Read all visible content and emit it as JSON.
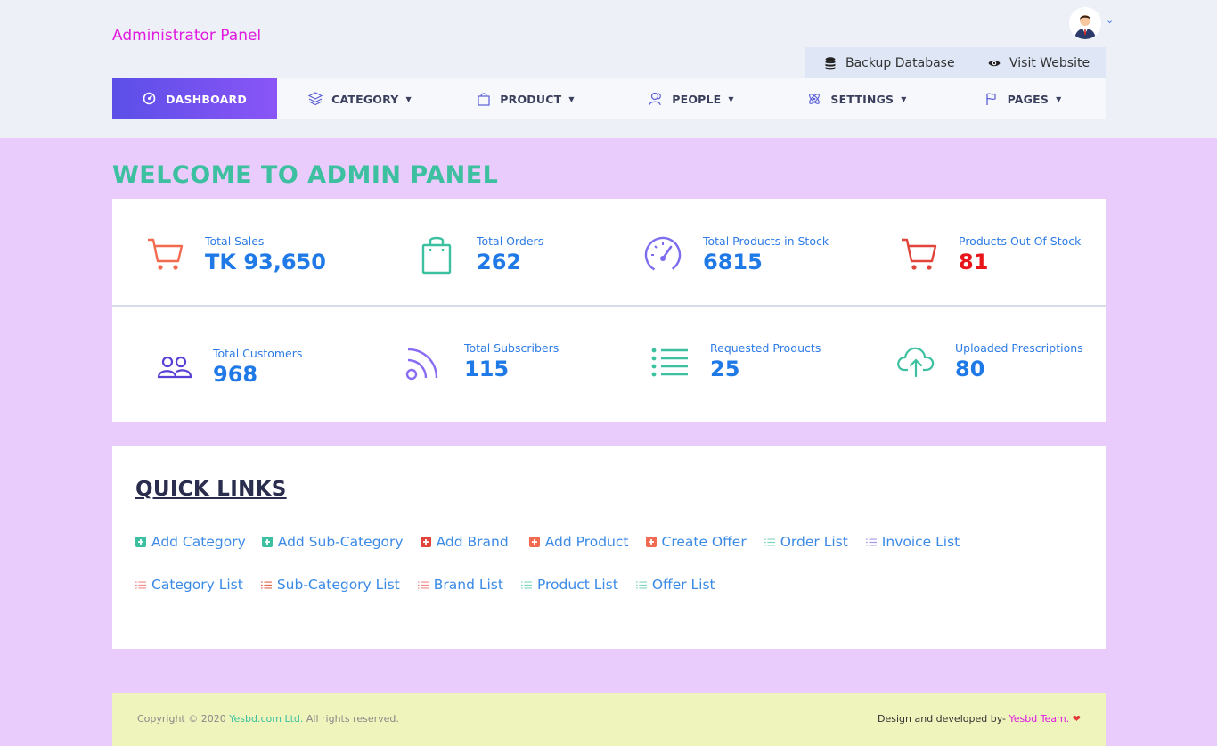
{
  "header": {
    "brand": "Administrator Panel",
    "buttons": {
      "backup": "Backup Database",
      "visit": "Visit Website"
    }
  },
  "nav": [
    {
      "label": "DASHBOARD",
      "icon": "dashboard-icon"
    },
    {
      "label": "CATEGORY",
      "icon": "layers-icon"
    },
    {
      "label": "PRODUCT",
      "icon": "bag-icon"
    },
    {
      "label": "PEOPLE",
      "icon": "people-icon"
    },
    {
      "label": "SETTINGS",
      "icon": "atom-icon"
    },
    {
      "label": "PAGES",
      "icon": "flag-icon"
    }
  ],
  "welcome": "WELCOME TO ADMIN PANEL",
  "stats": [
    {
      "label": "Total Sales",
      "value": "TK 93,650",
      "icon": "cart-icon"
    },
    {
      "label": "Total Orders",
      "value": "262",
      "icon": "shopping-bag-icon"
    },
    {
      "label": "Total Products in Stock",
      "value": "6815",
      "icon": "speedometer-icon"
    },
    {
      "label": "Products Out Of Stock",
      "value": "81",
      "icon": "cart-icon"
    },
    {
      "label": "Total Customers",
      "value": "968",
      "icon": "users-icon"
    },
    {
      "label": "Total Subscribers",
      "value": "115",
      "icon": "rss-icon"
    },
    {
      "label": "Requested Products",
      "value": "25",
      "icon": "list-icon"
    },
    {
      "label": "Uploaded Prescriptions",
      "value": "80",
      "icon": "cloud-upload-icon"
    }
  ],
  "quick_links": {
    "title": "QUICK LINKS",
    "row1": [
      "Add Category",
      "Add Sub-Category",
      "Add Brand",
      "Add Product",
      "Create Offer",
      "Order List",
      "Invoice List"
    ],
    "row2": [
      "Category List",
      "Sub-Category List",
      "Brand List",
      "Product List",
      "Offer List"
    ]
  },
  "footer": {
    "copyright_prefix": "Copyright © 2020 ",
    "company": "Yesbd.com Ltd.",
    "copyright_suffix": " All rights reserved.",
    "credit_prefix": "Design and developed by- ",
    "team": "Yesbd Team."
  },
  "colors": {
    "brand": "#e01ae0",
    "accent_teal": "#3cc0a0",
    "value_blue": "#1f7ae8",
    "value_red": "#e8151a",
    "page_bg": "#e9ccfb",
    "footer_bg": "#eff4bd"
  }
}
